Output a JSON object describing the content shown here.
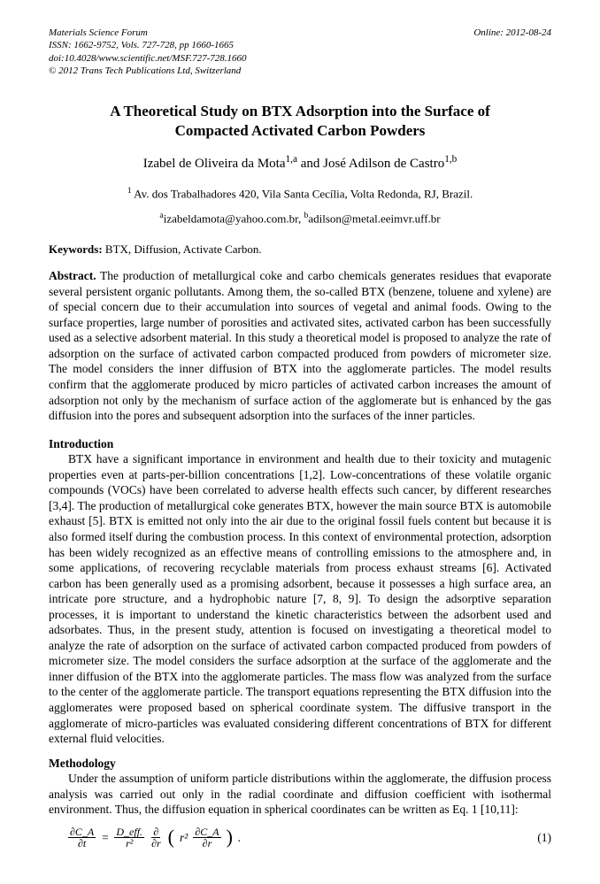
{
  "journal": {
    "name": "Materials Science Forum",
    "online_label": "Online: 2012-08-24",
    "issn_line": "ISSN: 1662-9752, Vols. 727-728, pp 1660-1665",
    "doi_line": "doi:10.4028/www.scientific.net/MSF.727-728.1660",
    "copyright": "© 2012 Trans Tech Publications Ltd, Switzerland"
  },
  "title": "A Theoretical Study on BTX Adsorption into the Surface of Compacted Activated Carbon Powders",
  "authors": {
    "author1_name": "Izabel de Oliveira da Mota",
    "author1_sup": "1,a",
    "and": " and ",
    "author2_name": "José Adilson de Castro",
    "author2_sup": "1,b"
  },
  "affiliation": {
    "sup": "1",
    "text": " Av. dos Trabalhadores 420, Vila Santa Cecília, Volta Redonda, RJ, Brazil."
  },
  "emails": {
    "sup_a": "a",
    "email_a": "izabeldamota@yahoo.com.br, ",
    "sup_b": "b",
    "email_b": "adilson@metal.eeimvr.uff.br"
  },
  "keywords": {
    "label": "Keywords:",
    "text": " BTX, Diffusion, Activate Carbon."
  },
  "abstract": {
    "label": "Abstract.",
    "text": " The production of metallurgical coke and carbo chemicals generates residues that evaporate several persistent organic pollutants. Among them, the so-called BTX (benzene, toluene and xylene) are of special concern due to their accumulation into sources of vegetal and animal foods. Owing to the surface properties, large number of porosities and activated sites, activated carbon has been successfully used as a selective adsorbent material. In this study a theoretical model is proposed to analyze the rate of adsorption on the surface of activated carbon compacted produced from powders of micrometer size. The model considers the inner diffusion of BTX into the agglomerate particles. The model results confirm that the agglomerate produced by micro particles of activated carbon increases the amount of adsorption not only by the mechanism of surface action of the agglomerate but is enhanced by the gas diffusion into the pores and subsequent adsorption into the surfaces of the inner particles."
  },
  "sections": {
    "intro_heading": "Introduction",
    "intro_text": "BTX have a significant importance in environment and health due to their toxicity and mutagenic properties even at parts-per-billion concentrations [1,2]. Low-concentrations of these volatile organic compounds (VOCs)  have been correlated to adverse health effects such cancer, by different researches [3,4]. The production of metallurgical coke generates BTX, however the main source BTX is automobile exhaust [5]. BTX is emitted not only into the air due to the original fossil fuels content but because it is also formed itself during the combustion process. In this context of environmental protection, adsorption has been widely recognized as an effective means of controlling emissions to the atmosphere and, in some applications, of recovering recyclable materials from process exhaust streams [6].  Activated carbon has been generally used as a promising adsorbent, because it possesses a high surface area, an intricate pore structure, and a hydrophobic nature [7, 8, 9]. To design the adsorptive separation processes, it is important to understand the kinetic characteristics between the adsorbent used and adsorbates. Thus, in the present study, attention is focused on investigating a theoretical model to analyze the rate of adsorption on the surface of activated carbon compacted produced from powders of micrometer size. The model considers the surface adsorption at the surface of the agglomerate and the inner diffusion of the BTX into the agglomerate particles. The mass flow was analyzed from the surface to the center of the agglomerate particle. The transport equations representing the BTX diffusion into the agglomerates were proposed based on spherical coordinate system. The diffusive transport in the agglomerate of micro-particles was evaluated considering different concentrations of BTX for different external fluid velocities.",
    "method_heading": "Methodology",
    "method_text": "Under the assumption of uniform particle distributions within the agglomerate, the diffusion process analysis was carried out only in the radial coordinate and diffusion coefficient with isothermal environment. Thus, the diffusion equation in spherical coordinates can be written as Eq. 1 [10,11]:"
  },
  "equation": {
    "lhs_num": "∂C_A",
    "lhs_den": "∂t",
    "equals": " = ",
    "f1_num": "D_eff.",
    "f1_den": "r²",
    "f2_num": "∂",
    "f2_den": "∂r",
    "inner_r2": "r²",
    "f3_num": "∂C_A",
    "f3_den": "∂r",
    "period": ".",
    "number": "(1)"
  }
}
